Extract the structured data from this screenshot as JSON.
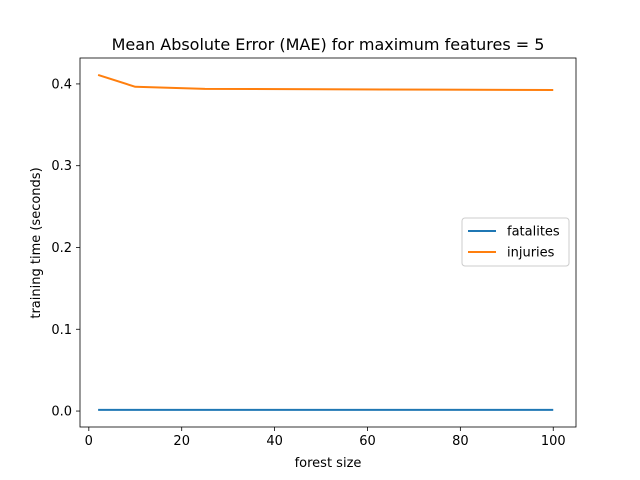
{
  "chart_data": {
    "type": "line",
    "title": "Mean Absolute Error (MAE) for maximum features  = 5",
    "xlabel": "forest size",
    "ylabel": "training time (seconds)",
    "xlim": [
      -1.9,
      104.9
    ],
    "ylim": [
      -0.0195,
      0.4317
    ],
    "xticks": [
      0,
      20,
      40,
      60,
      80,
      100
    ],
    "xtick_labels": [
      "0",
      "20",
      "40",
      "60",
      "80",
      "100"
    ],
    "yticks": [
      0.0,
      0.1,
      0.2,
      0.3,
      0.4
    ],
    "ytick_labels": [
      "0.0",
      "0.1",
      "0.2",
      "0.3",
      "0.4"
    ],
    "grid": false,
    "legend_position": "center-right",
    "series": [
      {
        "name": "fatalites",
        "color": "#1f77b4",
        "x": [
          2,
          10,
          25,
          50,
          75,
          100
        ],
        "y": [
          0.0015,
          0.0015,
          0.0015,
          0.0015,
          0.0015,
          0.0015
        ]
      },
      {
        "name": "injuries",
        "color": "#ff7f0e",
        "x": [
          2,
          10,
          25,
          50,
          75,
          100
        ],
        "y": [
          0.411,
          0.3965,
          0.394,
          0.3935,
          0.393,
          0.3925
        ]
      }
    ]
  }
}
